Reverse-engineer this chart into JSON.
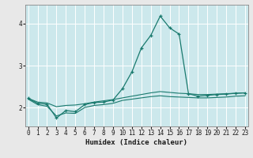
{
  "title": "",
  "xlabel": "Humidex (Indice chaleur)",
  "bg_color": "#cce8ec",
  "grid_color": "#ffffff",
  "line_color": "#1a7a6e",
  "x": [
    0,
    1,
    2,
    3,
    4,
    5,
    6,
    7,
    8,
    9,
    10,
    11,
    12,
    13,
    14,
    15,
    16,
    17,
    18,
    19,
    20,
    21,
    22,
    23
  ],
  "line_main": [
    2.22,
    2.1,
    2.08,
    1.75,
    1.93,
    1.9,
    2.07,
    2.12,
    2.13,
    2.18,
    2.45,
    2.85,
    3.42,
    3.72,
    4.18,
    3.9,
    3.75,
    2.33,
    2.27,
    2.29,
    2.31,
    2.32,
    2.34,
    2.35
  ],
  "line_upper": [
    2.22,
    2.13,
    2.11,
    2.02,
    2.05,
    2.06,
    2.09,
    2.13,
    2.16,
    2.19,
    2.23,
    2.27,
    2.31,
    2.35,
    2.38,
    2.36,
    2.34,
    2.33,
    2.31,
    2.31,
    2.32,
    2.33,
    2.34,
    2.35
  ],
  "line_lower": [
    2.2,
    2.07,
    2.03,
    1.8,
    1.87,
    1.86,
    2.0,
    2.05,
    2.07,
    2.1,
    2.17,
    2.2,
    2.23,
    2.26,
    2.28,
    2.26,
    2.25,
    2.24,
    2.23,
    2.23,
    2.24,
    2.25,
    2.27,
    2.28
  ],
  "ylim": [
    1.55,
    4.45
  ],
  "xlim": [
    -0.3,
    23.3
  ],
  "yticks": [
    2,
    3,
    4
  ],
  "xticks": [
    0,
    1,
    2,
    3,
    4,
    5,
    6,
    7,
    8,
    9,
    10,
    11,
    12,
    13,
    14,
    15,
    16,
    17,
    18,
    19,
    20,
    21,
    22,
    23
  ],
  "fig_bg": "#e8e8e8"
}
